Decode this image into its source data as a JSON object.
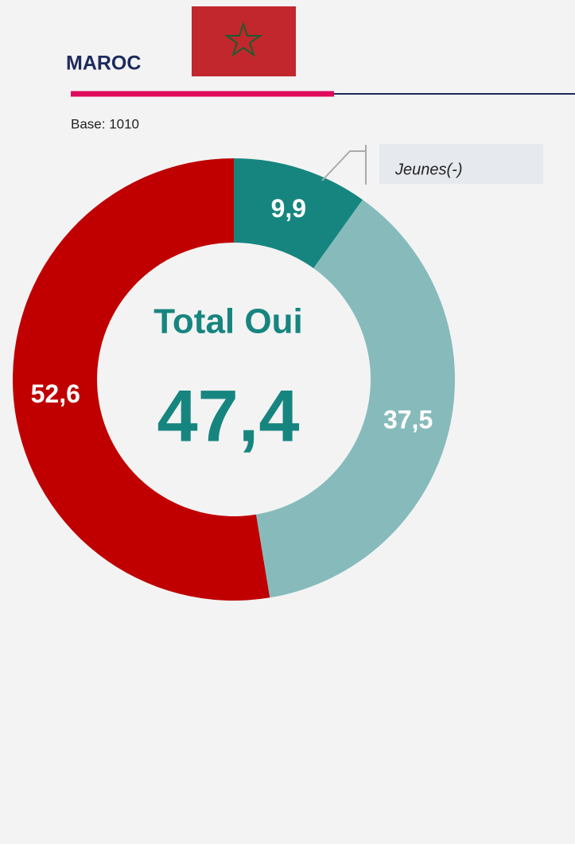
{
  "chart_data": {
    "type": "donut",
    "title": "MAROC",
    "subtitle": "Base: 1010",
    "center_title": "Total Oui",
    "center_text": "47,4",
    "annotation": "Jeunes(-)",
    "values": [
      9.9,
      37.5,
      52.6
    ],
    "value_labels": [
      "9,9",
      "37,5",
      "52,6"
    ],
    "colors": [
      "#17857f",
      "#87bbbb",
      "#c00000"
    ]
  }
}
